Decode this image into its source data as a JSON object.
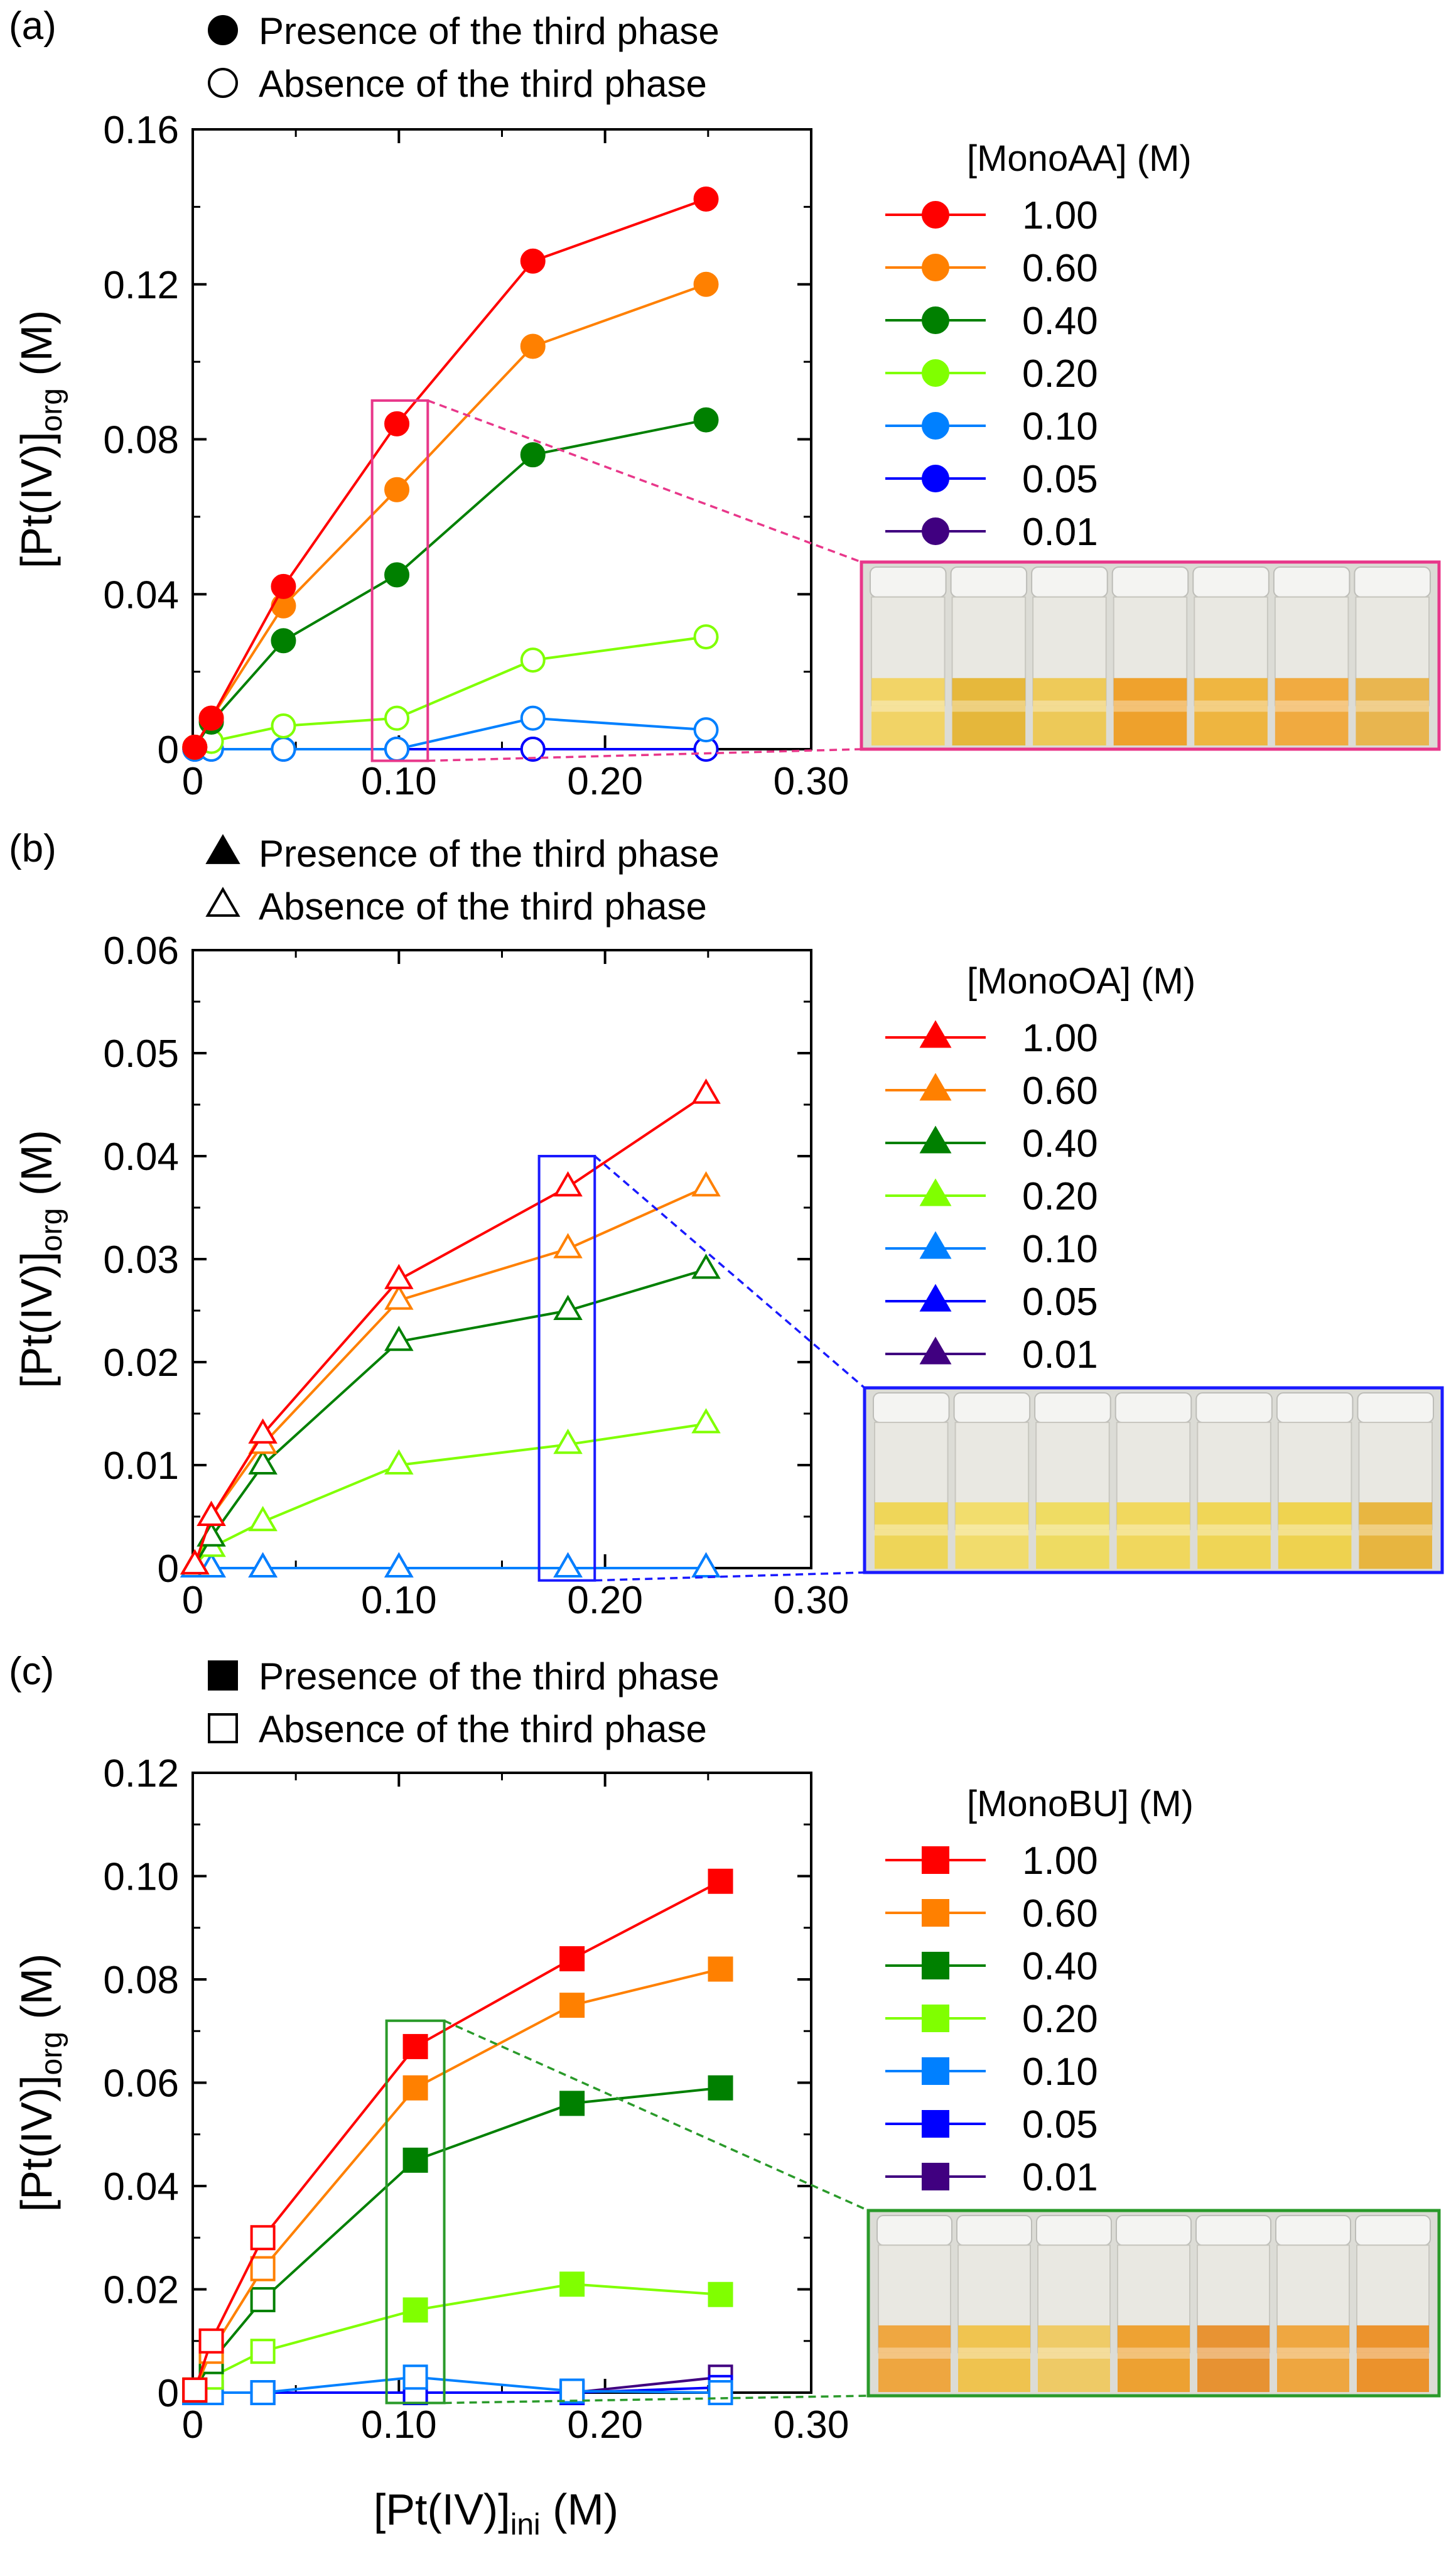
{
  "figure": {
    "x_axis_label_main": "[Pt(IV)]",
    "x_axis_label_sub": "ini",
    "x_axis_label_unit": " (M)",
    "y_axis_label_main": "[Pt(IV)]",
    "y_axis_label_sub": "org",
    "y_axis_label_unit": " (M)"
  },
  "colors": {
    "1.00": "#ff0000",
    "0.60": "#ff8000",
    "0.40": "#008000",
    "0.20": "#80ff00",
    "0.10": "#0080ff",
    "0.05": "#0000ff",
    "0.01": "#400080",
    "pink": "#e8378a",
    "blue_box": "#1a1aff",
    "green_box": "#2a9a2a"
  },
  "chart_data": [
    {
      "type": "line",
      "panel_label": "(a)",
      "marker": "circle",
      "legend_filled": "Presence of the third phase",
      "legend_open": "Absence of the third phase",
      "legend_title": "[MonoAA] (M)",
      "xlim": [
        0,
        0.3
      ],
      "ylim": [
        0,
        0.16
      ],
      "xticks": [
        "0",
        "0.10",
        "0.20",
        "0.30"
      ],
      "yticks": [
        "0",
        "0.04",
        "0.08",
        "0.12",
        "0.16"
      ],
      "xtick_values": [
        0,
        0.1,
        0.2,
        0.3
      ],
      "ytick_values": [
        0,
        0.04,
        0.08,
        0.12,
        0.16
      ],
      "highlight_range": {
        "x": [
          0.087,
          0.114
        ],
        "y": [
          -0.003,
          0.09
        ]
      },
      "series": [
        {
          "name": "1.00",
          "x": [
            0.001,
            0.009,
            0.044,
            0.099,
            0.165,
            0.249
          ],
          "y": [
            0.0005,
            0.008,
            0.042,
            0.084,
            0.126,
            0.142
          ],
          "filled": [
            true,
            true,
            true,
            true,
            true,
            true
          ]
        },
        {
          "name": "0.60",
          "x": [
            0.001,
            0.009,
            0.044,
            0.099,
            0.165,
            0.249
          ],
          "y": [
            0.0005,
            0.008,
            0.037,
            0.067,
            0.104,
            0.12
          ],
          "filled": [
            true,
            true,
            true,
            true,
            true,
            true
          ]
        },
        {
          "name": "0.40",
          "x": [
            0.001,
            0.009,
            0.044,
            0.099,
            0.165,
            0.249
          ],
          "y": [
            0.0005,
            0.007,
            0.028,
            0.045,
            0.076,
            0.085
          ],
          "filled": [
            true,
            true,
            true,
            true,
            true,
            true
          ]
        },
        {
          "name": "0.20",
          "x": [
            0.001,
            0.009,
            0.044,
            0.099,
            0.165,
            0.249
          ],
          "y": [
            0.0005,
            0.002,
            0.006,
            0.008,
            0.023,
            0.029
          ],
          "filled": [
            false,
            false,
            false,
            false,
            false,
            false
          ]
        },
        {
          "name": "0.10",
          "x": [
            0.001,
            0.009,
            0.044,
            0.099,
            0.165,
            0.249
          ],
          "y": [
            0,
            0,
            0,
            0,
            0.008,
            0.005
          ],
          "filled": [
            false,
            false,
            false,
            false,
            false,
            false
          ]
        },
        {
          "name": "0.05",
          "x": [
            0.001,
            0.009,
            0.044,
            0.099,
            0.165,
            0.249
          ],
          "y": [
            0,
            0,
            0,
            0,
            0,
            0
          ],
          "filled": [
            false,
            false,
            false,
            false,
            false,
            false
          ]
        },
        {
          "name": "0.01",
          "x": [
            0.001,
            0.009,
            0.044,
            0.099,
            0.165,
            0.249
          ],
          "y": [
            0,
            0,
            0,
            0,
            0,
            0
          ],
          "filled": [
            false,
            false,
            false,
            false,
            false,
            false
          ]
        }
      ]
    },
    {
      "type": "line",
      "panel_label": "(b)",
      "marker": "triangle",
      "legend_filled": "Presence of the third phase",
      "legend_open": "Absence of the third phase",
      "legend_title": "[MonoOA] (M)",
      "xlim": [
        0,
        0.3
      ],
      "ylim": [
        0,
        0.06
      ],
      "xticks": [
        "0",
        "0.10",
        "0.20",
        "0.30"
      ],
      "yticks": [
        "0",
        "0.01",
        "0.02",
        "0.03",
        "0.04",
        "0.05",
        "0.06"
      ],
      "xtick_values": [
        0,
        0.1,
        0.2,
        0.3
      ],
      "ytick_values": [
        0,
        0.01,
        0.02,
        0.03,
        0.04,
        0.05,
        0.06
      ],
      "highlight_range": {
        "x": [
          0.168,
          0.195
        ],
        "y": [
          -0.0012,
          0.04
        ]
      },
      "series": [
        {
          "name": "1.00",
          "x": [
            0.001,
            0.009,
            0.034,
            0.1,
            0.182,
            0.249
          ],
          "y": [
            0.0003,
            0.005,
            0.013,
            0.028,
            0.037,
            0.046
          ],
          "filled": [
            false,
            false,
            false,
            false,
            false,
            false
          ]
        },
        {
          "name": "0.60",
          "x": [
            0.001,
            0.009,
            0.034,
            0.1,
            0.182,
            0.249
          ],
          "y": [
            0.0003,
            0.005,
            0.012,
            0.026,
            0.031,
            0.037
          ],
          "filled": [
            false,
            false,
            false,
            false,
            false,
            false
          ]
        },
        {
          "name": "0.40",
          "x": [
            0.001,
            0.009,
            0.034,
            0.1,
            0.182,
            0.249
          ],
          "y": [
            0.0003,
            0.003,
            0.01,
            0.022,
            0.025,
            0.029
          ],
          "filled": [
            false,
            false,
            false,
            false,
            false,
            false
          ]
        },
        {
          "name": "0.20",
          "x": [
            0.001,
            0.009,
            0.034,
            0.1,
            0.182,
            0.249
          ],
          "y": [
            0.0003,
            0.002,
            0.0045,
            0.01,
            0.012,
            0.014
          ],
          "filled": [
            false,
            false,
            false,
            false,
            false,
            false
          ]
        },
        {
          "name": "0.10",
          "x": [
            0.001,
            0.009,
            0.034,
            0.1,
            0.182,
            0.249
          ],
          "y": [
            0,
            0,
            0,
            0,
            0,
            0
          ],
          "filled": [
            false,
            false,
            false,
            false,
            false,
            false
          ]
        },
        {
          "name": "0.05",
          "x": [
            0.001,
            0.009,
            0.034,
            0.1,
            0.182,
            0.249
          ],
          "y": [
            0,
            0,
            0,
            0,
            0,
            0
          ],
          "filled": [
            false,
            false,
            false,
            false,
            false,
            false
          ]
        },
        {
          "name": "0.01",
          "x": [
            0.001,
            0.009,
            0.034,
            0.1,
            0.182,
            0.249
          ],
          "y": [
            0,
            0,
            0,
            0,
            0,
            0
          ],
          "filled": [
            false,
            false,
            false,
            false,
            false,
            false
          ]
        }
      ]
    },
    {
      "type": "line",
      "panel_label": "(c)",
      "marker": "square",
      "legend_filled": "Presence of the third phase",
      "legend_open": "Absence of the third phase",
      "legend_title": "[MonoBU] (M)",
      "xlim": [
        0,
        0.3
      ],
      "ylim": [
        0,
        0.12
      ],
      "xticks": [
        "0",
        "0.10",
        "0.20",
        "0.30"
      ],
      "yticks": [
        "0",
        "0.02",
        "0.04",
        "0.06",
        "0.08",
        "0.10",
        "0.12"
      ],
      "xtick_values": [
        0,
        0.1,
        0.2,
        0.3
      ],
      "ytick_values": [
        0,
        0.02,
        0.04,
        0.06,
        0.08,
        0.1,
        0.12
      ],
      "highlight_range": {
        "x": [
          0.094,
          0.122
        ],
        "y": [
          -0.002,
          0.072
        ]
      },
      "series": [
        {
          "name": "1.00",
          "x": [
            0.001,
            0.009,
            0.034,
            0.108,
            0.184,
            0.256
          ],
          "y": [
            0.0005,
            0.01,
            0.03,
            0.067,
            0.084,
            0.099
          ],
          "filled": [
            false,
            false,
            false,
            true,
            true,
            true
          ]
        },
        {
          "name": "0.60",
          "x": [
            0.001,
            0.009,
            0.034,
            0.108,
            0.184,
            0.256
          ],
          "y": [
            0.0005,
            0.008,
            0.024,
            0.059,
            0.075,
            0.082
          ],
          "filled": [
            false,
            false,
            false,
            true,
            true,
            true
          ]
        },
        {
          "name": "0.40",
          "x": [
            0.001,
            0.009,
            0.034,
            0.108,
            0.184,
            0.256
          ],
          "y": [
            0.0005,
            0.006,
            0.018,
            0.045,
            0.056,
            0.059
          ],
          "filled": [
            false,
            false,
            false,
            true,
            true,
            true
          ]
        },
        {
          "name": "0.20",
          "x": [
            0.001,
            0.009,
            0.034,
            0.108,
            0.184,
            0.256
          ],
          "y": [
            0.0005,
            0.003,
            0.008,
            0.016,
            0.021,
            0.019
          ],
          "filled": [
            false,
            false,
            false,
            true,
            true,
            true
          ]
        },
        {
          "name": "0.10",
          "x": [
            0.001,
            0.009,
            0.034,
            0.108,
            0.184,
            0.256
          ],
          "y": [
            0,
            0,
            0,
            0.003,
            0.0003,
            0
          ],
          "filled": [
            false,
            false,
            false,
            false,
            false,
            false
          ]
        },
        {
          "name": "0.05",
          "x": [
            0.001,
            0.009,
            0.034,
            0.108,
            0.184,
            0.256
          ],
          "y": [
            0,
            0,
            0,
            0,
            0,
            0.001
          ],
          "filled": [
            false,
            false,
            false,
            false,
            false,
            false
          ]
        },
        {
          "name": "0.01",
          "x": [
            0.001,
            0.009,
            0.034,
            0.108,
            0.184,
            0.256
          ],
          "y": [
            0,
            0,
            0,
            0,
            0,
            0.003
          ],
          "filled": [
            false,
            false,
            false,
            false,
            false,
            false
          ]
        }
      ]
    }
  ]
}
